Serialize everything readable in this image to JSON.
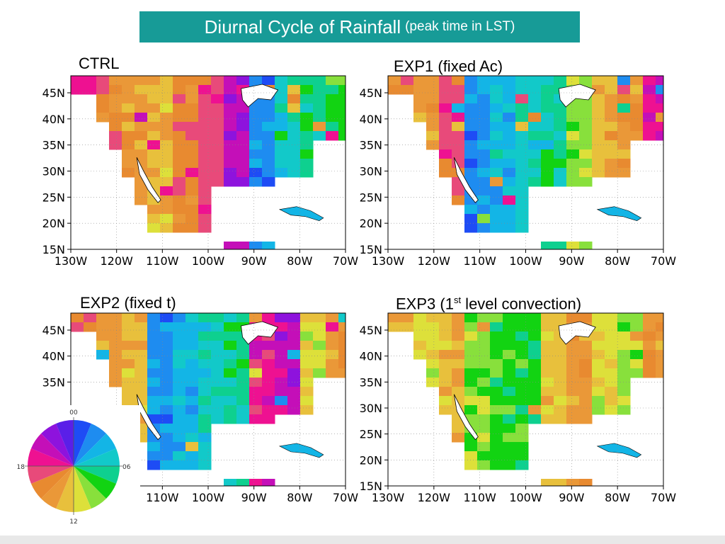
{
  "title": {
    "main": "Diurnal Cycle of Rainfall",
    "sub": "(peak time in LST)"
  },
  "colors": {
    "title_bg": "#179b97",
    "clock_palette": [
      "#1e4cf5",
      "#1e8cf0",
      "#13b5e6",
      "#12c9c9",
      "#0ed08f",
      "#12d312",
      "#88e03c",
      "#dde03a",
      "#e8c03c",
      "#ea9838",
      "#e88a30",
      "#e84a7a",
      "#ee1191",
      "#c40fb8",
      "#8e13dd",
      "#5a1fe8"
    ],
    "land_base": "#e8a23c",
    "ocean": "#ffffff"
  },
  "panels": [
    {
      "key": "ctrl",
      "label": "CTRL",
      "label_sup": "",
      "label_suffix": "",
      "y_ticks": [
        "45N",
        "40N",
        "35N",
        "30N",
        "25N",
        "20N",
        "15N"
      ],
      "x_ticks": [
        "130W",
        "120W",
        "110W",
        "100W",
        "90W",
        "80W",
        "70W"
      ]
    },
    {
      "key": "exp1",
      "label": "EXP1 (fixed Ac)",
      "label_sup": "",
      "label_suffix": "",
      "y_ticks": [
        "45N",
        "40N",
        "35N",
        "30N",
        "25N",
        "20N",
        "15N"
      ],
      "x_ticks": [
        "130W",
        "120W",
        "110W",
        "100W",
        "90W",
        "80W",
        "70W"
      ]
    },
    {
      "key": "exp2",
      "label": "EXP2 (fixed t)",
      "label_sup": "",
      "label_suffix": "",
      "y_ticks": [
        "45N",
        "40N",
        "35N"
      ],
      "x_ticks": [
        "110W",
        "100W",
        "90W",
        "80W",
        "70W"
      ]
    },
    {
      "key": "exp3",
      "label": "EXP3 (1",
      "label_sup": "st",
      "label_suffix": " level convection)",
      "y_ticks": [
        "45N",
        "40N",
        "35N",
        "30N",
        "25N",
        "20N",
        "15N"
      ],
      "x_ticks": [
        "130W",
        "120W",
        "110W",
        "100W",
        "90W",
        "80W",
        "70W"
      ]
    }
  ],
  "legend": {
    "hours_labels": {
      "top": "00",
      "right": "06",
      "bottom": "12",
      "left": "18"
    }
  }
}
